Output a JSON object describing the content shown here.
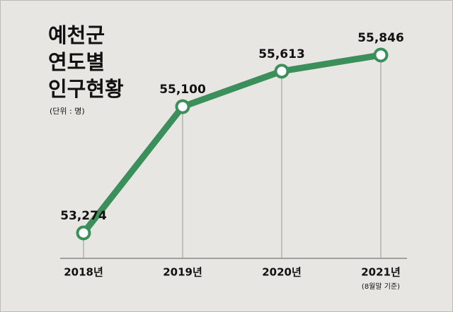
{
  "chart_data": {
    "type": "line",
    "title": [
      "예천군",
      "연도별",
      "인구현황"
    ],
    "subtitle": "(단위 : 명)",
    "categories": [
      "2018년",
      "2019년",
      "2020년",
      "2021년"
    ],
    "values": [
      53274,
      55100,
      55613,
      55846
    ],
    "value_labels": [
      "53,274",
      "55,100",
      "55,613",
      "55,846"
    ],
    "annotation": "(8월말 기준)",
    "color": "#3a8f5a",
    "drop_lines": true
  }
}
